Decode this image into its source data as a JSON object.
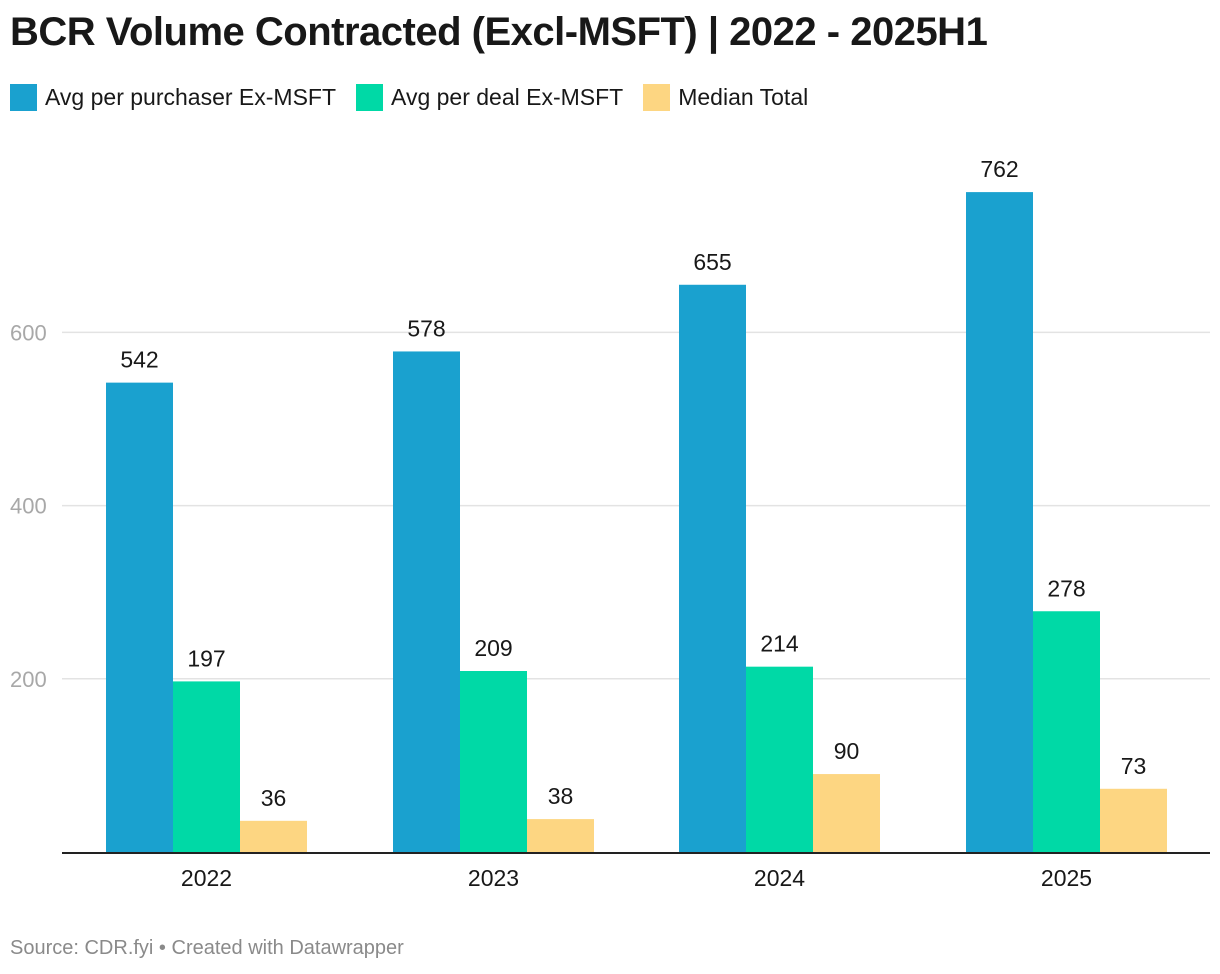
{
  "title": "BCR Volume Contracted (Excl-MSFT) | 2022 - 2025H1",
  "legend": [
    {
      "label": "Avg per purchaser Ex-MSFT",
      "color": "#1aa1cf"
    },
    {
      "label": "Avg per deal Ex-MSFT",
      "color": "#00d9a6"
    },
    {
      "label": "Median Total",
      "color": "#fdd682"
    }
  ],
  "footer": {
    "source": "Source: CDR.fyi",
    "separator": " • ",
    "credit": "Created with Datawrapper"
  },
  "chart_data": {
    "type": "bar",
    "categories": [
      "2022",
      "2023",
      "2024",
      "2025"
    ],
    "series": [
      {
        "name": "Avg per purchaser Ex-MSFT",
        "color": "#1aa1cf",
        "values": [
          542,
          578,
          655,
          762
        ]
      },
      {
        "name": "Avg per deal Ex-MSFT",
        "color": "#00d9a6",
        "values": [
          197,
          209,
          214,
          278
        ]
      },
      {
        "name": "Median Total",
        "color": "#fdd682",
        "values": [
          36,
          38,
          90,
          73
        ]
      }
    ],
    "yticks": [
      200,
      400,
      600
    ],
    "ylim": [
      0,
      800
    ],
    "grid": true,
    "legend_position": "top-left"
  }
}
